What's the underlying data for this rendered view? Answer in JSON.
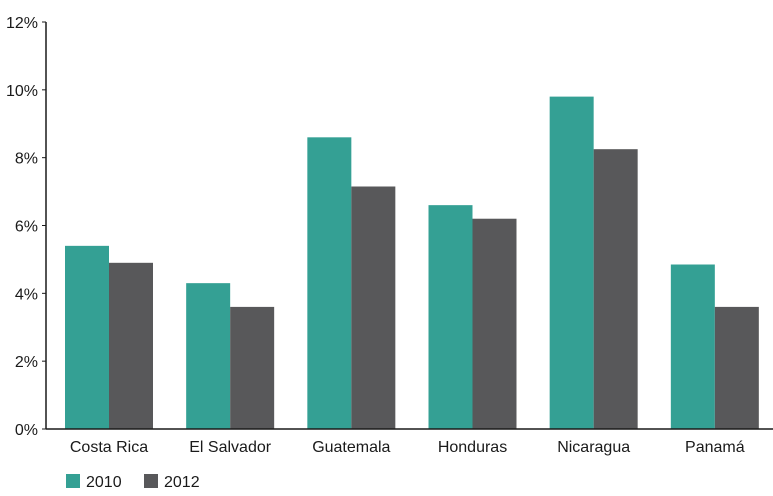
{
  "chart_data": {
    "type": "bar",
    "categories": [
      "Costa Rica",
      "El Salvador",
      "Guatemala",
      "Honduras",
      "Nicaragua",
      "Panamá"
    ],
    "series": [
      {
        "name": "2010",
        "color": "#34a094",
        "values": [
          5.4,
          4.3,
          8.6,
          6.6,
          9.8,
          4.85
        ]
      },
      {
        "name": "2012",
        "color": "#58585a",
        "values": [
          4.9,
          3.6,
          7.15,
          6.2,
          8.25,
          3.6
        ]
      }
    ],
    "y_ticks": [
      "0%",
      "2%",
      "4%",
      "6%",
      "8%",
      "10%",
      "12%"
    ],
    "ylim": [
      0,
      12
    ],
    "title": "",
    "xlabel": "",
    "ylabel": "",
    "grid": false,
    "legend_position": "bottom-left"
  }
}
